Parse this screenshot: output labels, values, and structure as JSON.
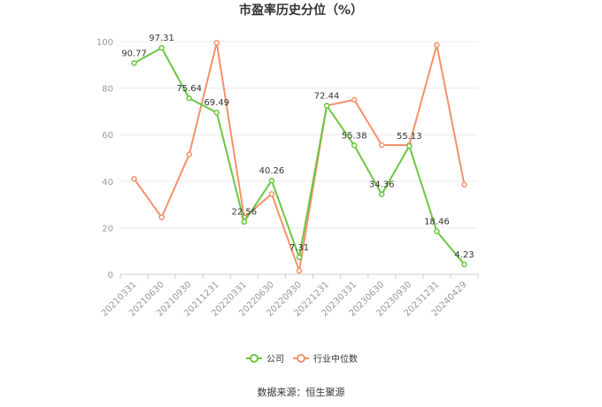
{
  "chart_data": {
    "type": "line",
    "title": "市盈率历史分位（%）",
    "categories": [
      "20210331",
      "20210630",
      "20210930",
      "20211231",
      "20220331",
      "20220630",
      "20220930",
      "20221231",
      "20230331",
      "20230630",
      "20230930",
      "20231231",
      "20240429"
    ],
    "ylim": [
      0,
      100
    ],
    "yticks": [
      0,
      20,
      40,
      60,
      80,
      100
    ],
    "grid": true,
    "legend_position": "bottom",
    "series": [
      {
        "name": "公司",
        "color": "#6cc641",
        "values": [
          90.77,
          97.31,
          75.64,
          69.49,
          22.56,
          40.26,
          7.31,
          72.44,
          55.38,
          34.36,
          55.13,
          18.46,
          4.23
        ],
        "labels": [
          "90.77",
          "97.31",
          "75.64",
          "69.49",
          "22.56",
          "40.26",
          "7.31",
          "72.44",
          "55.38",
          "34.36",
          "55.13",
          "18.46",
          "4.23"
        ]
      },
      {
        "name": "行业中位数",
        "color": "#f4916a",
        "values": [
          41,
          24.5,
          51.5,
          99.5,
          24.5,
          34.5,
          1.5,
          72.5,
          75,
          55.5,
          55.5,
          98.5,
          38.5
        ]
      }
    ]
  },
  "source": "数据来源：恒生聚源"
}
